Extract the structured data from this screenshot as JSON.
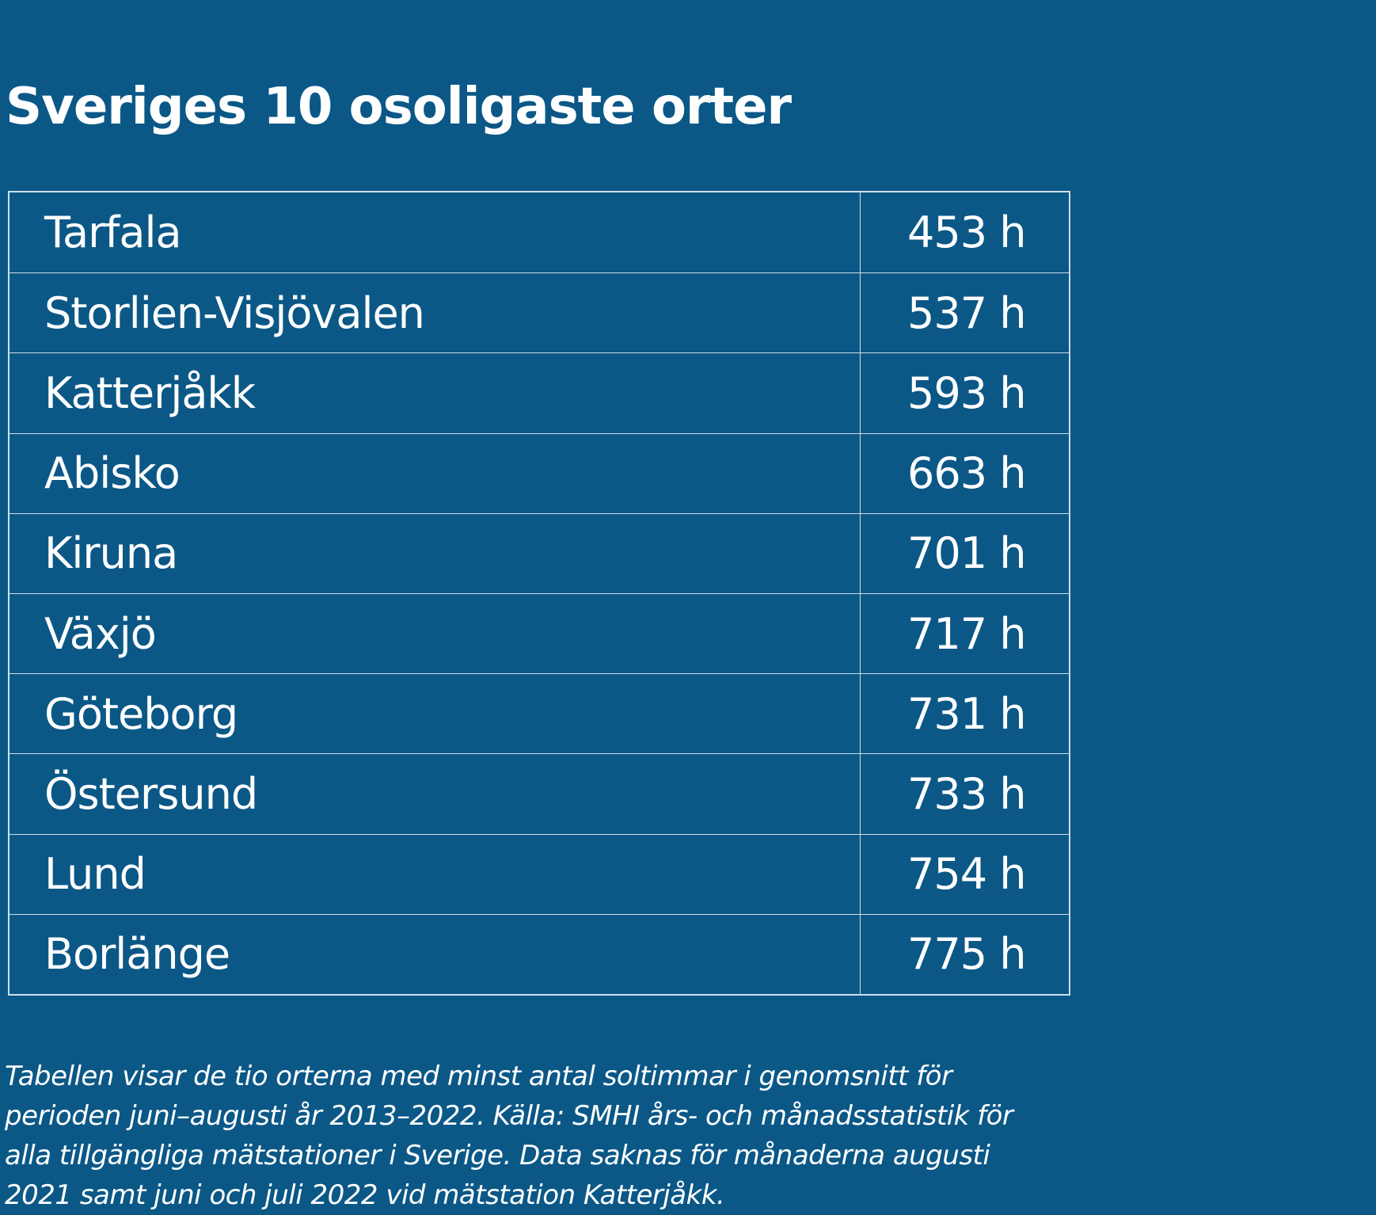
{
  "header": {
    "title": "Sveriges 10 osoligaste orter"
  },
  "table": {
    "rows": [
      [
        "Tarfala",
        "453 h"
      ],
      [
        "Storlien-Visjövalen",
        "537 h"
      ],
      [
        "Katterjåkk",
        "593 h"
      ],
      [
        "Abisko",
        "663 h"
      ],
      [
        "Kiruna",
        "701 h"
      ],
      [
        "Växjö",
        "717 h"
      ],
      [
        "Göteborg",
        "731 h"
      ],
      [
        "Östersund",
        "733 h"
      ],
      [
        "Lund",
        "754 h"
      ],
      [
        "Borlänge",
        "775 h"
      ]
    ]
  },
  "footnote": {
    "lines": [
      "Tabellen visar de tio orterna med minst antal soltimmar i genomsnitt för",
      "perioden juni–augusti år 2013–2022. Källa: SMHI års- och månadsstatistik för",
      "alla tillgängliga mätstationer i Sverige. Data saknas för månaderna augusti",
      "2021 samt juni och juli 2022 vid mätstation Katterjåkk."
    ]
  }
}
